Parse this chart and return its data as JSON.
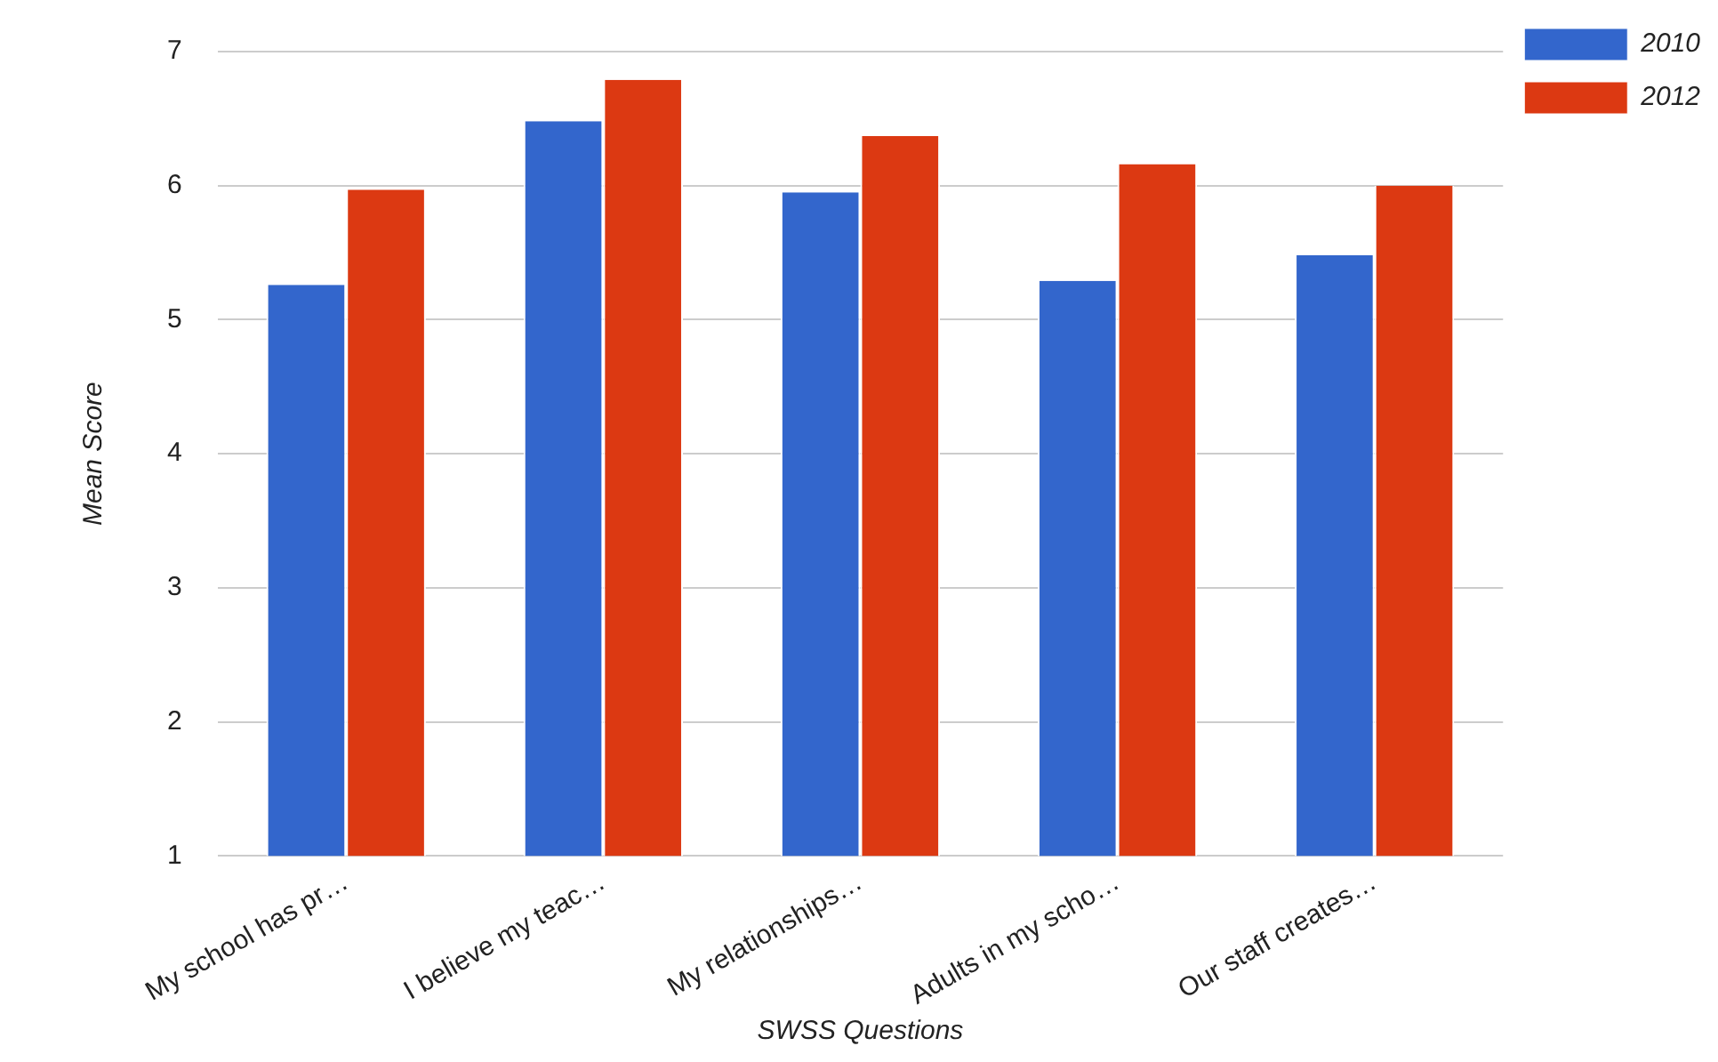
{
  "chart_data": {
    "type": "bar",
    "xlabel": "SWSS Questions",
    "ylabel": "Mean Score",
    "categories": [
      "My school has pr…",
      "I believe my teac…",
      "My relationships…",
      "Adults in my scho…",
      "Our staff creates…"
    ],
    "series": [
      {
        "name": "2010",
        "color": "#3366cc",
        "values": [
          5.26,
          6.48,
          5.95,
          5.29,
          5.48
        ]
      },
      {
        "name": "2012",
        "color": "#dc3912",
        "values": [
          5.97,
          6.79,
          6.37,
          6.16,
          6.0
        ]
      }
    ],
    "ylim": [
      1,
      7
    ],
    "yticks": [
      1,
      2,
      3,
      4,
      5,
      6,
      7
    ],
    "grid": "y",
    "legend": "top right"
  }
}
